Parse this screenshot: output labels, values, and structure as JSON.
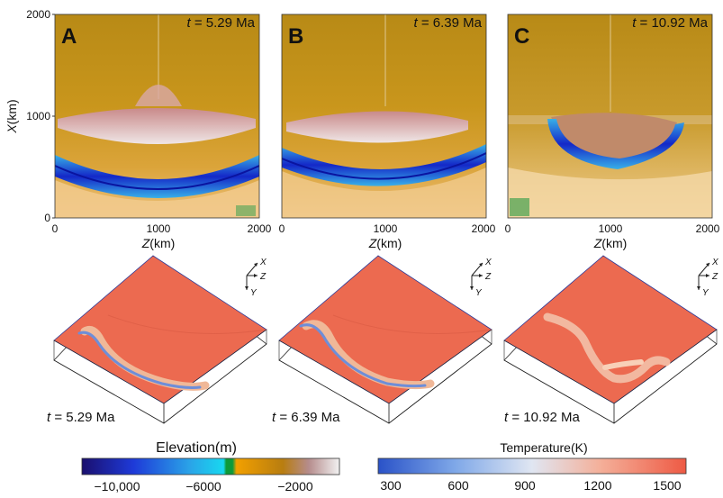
{
  "top_panels": [
    {
      "letter": "A",
      "time_prefix": "t",
      "time_value": " = 5.29 Ma"
    },
    {
      "letter": "B",
      "time_prefix": "t",
      "time_value": " = 6.39 Ma"
    },
    {
      "letter": "C",
      "time_prefix": "t",
      "time_value": " = 10.92 Ma"
    }
  ],
  "axes": {
    "x_label_var": "X",
    "x_label_unit": "(km)",
    "z_label_var": "Z",
    "z_label_unit": "(km)",
    "y_ticks": [
      "2000",
      "1000",
      "0"
    ],
    "z_ticks": [
      "0",
      "1000",
      "2000"
    ]
  },
  "bottom_panels": [
    {
      "time_prefix": "t",
      "time_value": " = 5.29 Ma"
    },
    {
      "time_prefix": "t",
      "time_value": " = 6.39 Ma"
    },
    {
      "time_prefix": "t",
      "time_value": " = 10.92 Ma"
    }
  ],
  "axis_triad": {
    "x": "X",
    "z": "Z",
    "y": "Y"
  },
  "elevation_colorbar": {
    "title": "Elevation(m)",
    "ticks": [
      "−10,000",
      "−6000",
      "−2000"
    ],
    "colors": [
      "#1a0f6e",
      "#1e3ad8",
      "#2aa4e8",
      "#18d8f0",
      "#0e9a3a",
      "#f2a000",
      "#b87d10",
      "#b58c8c",
      "#f2f2f2"
    ]
  },
  "temperature_colorbar": {
    "title": "Temperature(K)",
    "ticks": [
      "300",
      "600",
      "900",
      "1200",
      "1500"
    ],
    "colors": [
      "#2a52c8",
      "#7fa8e8",
      "#e0e6f2",
      "#f4b09a",
      "#ee5a44"
    ]
  }
}
